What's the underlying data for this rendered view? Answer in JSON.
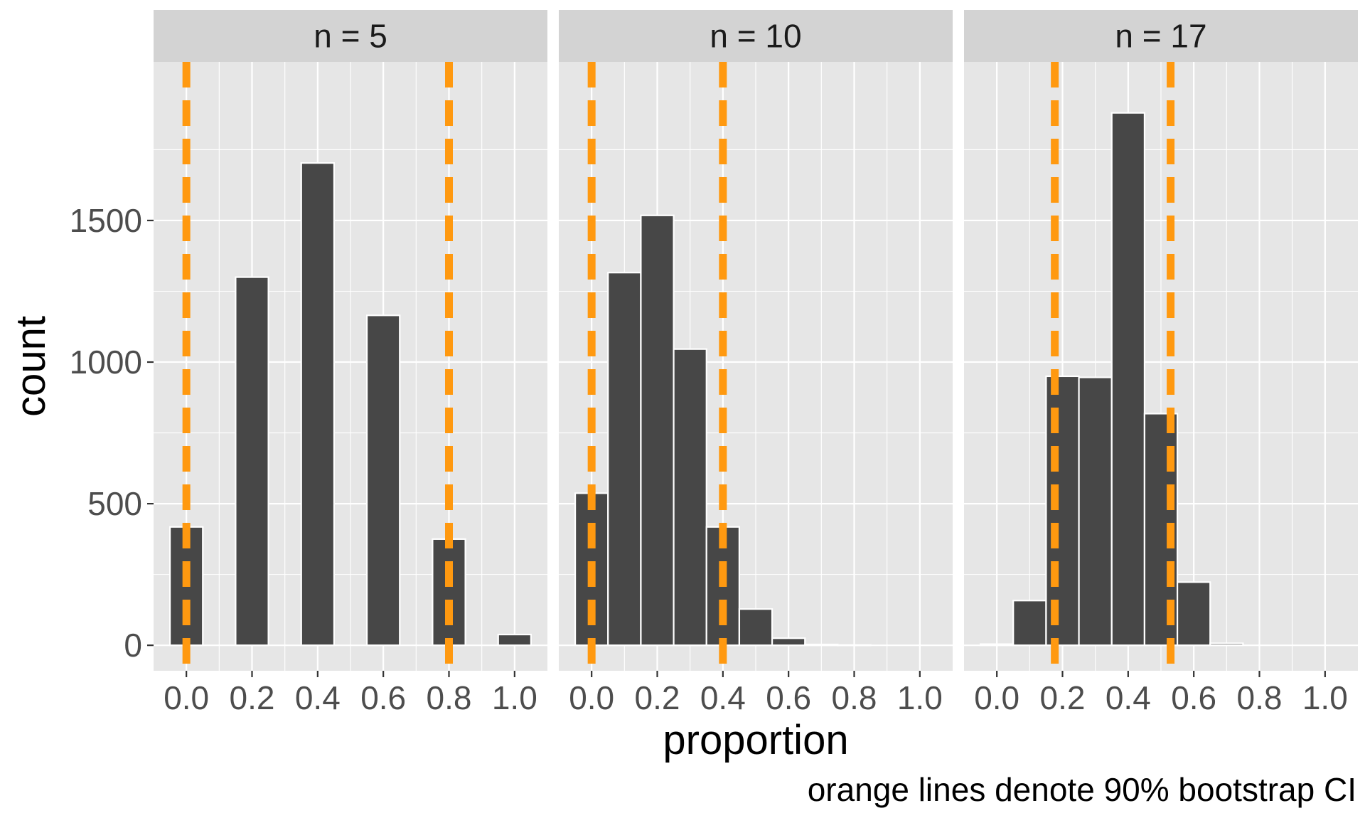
{
  "chart_data": {
    "type": "bar",
    "xlabel": "proportion",
    "ylabel": "count",
    "caption": "orange lines denote 90% bootstrap CI",
    "xlim": [
      -0.1,
      1.1
    ],
    "ylim": [
      -90,
      2060
    ],
    "x_ticks": [
      0.0,
      0.2,
      0.4,
      0.6,
      0.8,
      1.0
    ],
    "x_tick_labels": [
      "0.0",
      "0.2",
      "0.4",
      "0.6",
      "0.8",
      "1.0"
    ],
    "y_ticks": [
      0,
      500,
      1000,
      1500
    ],
    "y_tick_labels": [
      "0",
      "500",
      "1000",
      "1500"
    ],
    "bin_width": 0.1,
    "grid": true,
    "colors": {
      "bar_fill": "#474747",
      "bar_stroke": "#ffffff",
      "panel_bg": "#e6e6e6",
      "strip_bg": "#d3d3d3",
      "grid": "#ffffff",
      "ci_line": "#ff9910",
      "text": "#4d4d4d",
      "title_text": "#1a1a1a"
    },
    "facets": [
      {
        "label": "n = 5",
        "bins": [
          0.0,
          0.2,
          0.4,
          0.6,
          0.8,
          1.0
        ],
        "counts": [
          418,
          1300,
          1703,
          1165,
          375,
          38
        ],
        "ci": [
          0.0,
          0.8
        ]
      },
      {
        "label": "n = 10",
        "bins": [
          0.0,
          0.1,
          0.2,
          0.3,
          0.4,
          0.5,
          0.6,
          0.7,
          0.8,
          0.9,
          1.0
        ],
        "counts": [
          537,
          1316,
          1518,
          1046,
          418,
          128,
          25,
          3,
          1,
          0,
          0
        ],
        "ci": [
          0.0,
          0.4
        ]
      },
      {
        "label": "n = 17",
        "bins": [
          0.0,
          0.1,
          0.2,
          0.3,
          0.4,
          0.5,
          0.6,
          0.7,
          0.8,
          0.9,
          1.0
        ],
        "counts": [
          4,
          158,
          950,
          946,
          1880,
          818,
          223,
          7,
          0,
          0,
          0
        ],
        "ci": [
          0.1765,
          0.5294
        ]
      }
    ]
  }
}
